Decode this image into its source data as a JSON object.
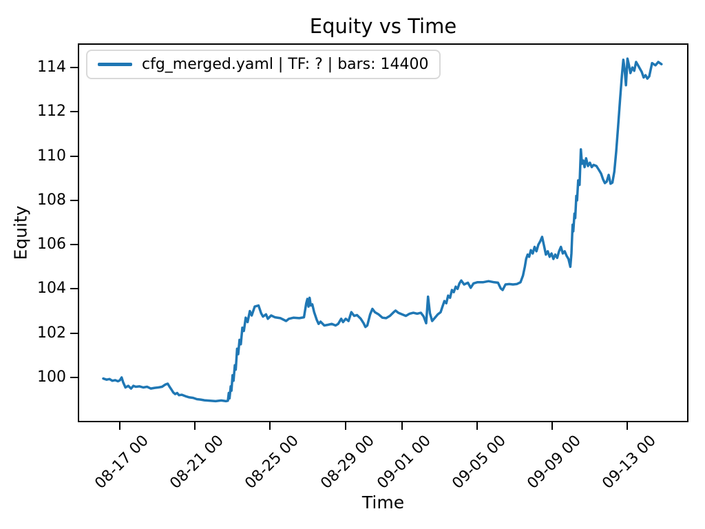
{
  "title": "Equity vs Time",
  "xlabel": "Time",
  "ylabel": "Equity",
  "legend": {
    "label": "cfg_merged.yaml | TF: ? | bars: 14400",
    "line_color": "#1f77b4"
  },
  "colors": {
    "line": "#1f77b4",
    "axis": "#000000",
    "legend_border": "#d9d9d9",
    "background": "#ffffff"
  },
  "chart_data": {
    "type": "line",
    "title": "Equity vs Time",
    "xlabel": "Time",
    "ylabel": "Equity",
    "grid": false,
    "legend_position": "upper left",
    "x_unit": "days since 08-16 00:00 (x tick labels shown as MM-DD HH)",
    "xlim": [
      -1.2,
      31.3
    ],
    "ylim": [
      98.0,
      115.1
    ],
    "x_ticks": [
      {
        "t": 1,
        "label": "08-17 00"
      },
      {
        "t": 5,
        "label": "08-21 00"
      },
      {
        "t": 9,
        "label": "08-25 00"
      },
      {
        "t": 13,
        "label": "08-29 00"
      },
      {
        "t": 16,
        "label": "09-01 00"
      },
      {
        "t": 20,
        "label": "09-05 00"
      },
      {
        "t": 24,
        "label": "09-09 00"
      },
      {
        "t": 28,
        "label": "09-13 00"
      }
    ],
    "y_ticks": [
      100,
      102,
      104,
      106,
      108,
      110,
      112,
      114
    ],
    "series": [
      {
        "name": "cfg_merged.yaml | TF: ? | bars: 14400",
        "color": "#1f77b4",
        "points": [
          [
            0.12,
            99.95
          ],
          [
            0.3,
            99.9
          ],
          [
            0.45,
            99.93
          ],
          [
            0.6,
            99.85
          ],
          [
            0.75,
            99.88
          ],
          [
            0.9,
            99.83
          ],
          [
            1.0,
            99.87
          ],
          [
            1.1,
            100.0
          ],
          [
            1.18,
            99.78
          ],
          [
            1.3,
            99.55
          ],
          [
            1.45,
            99.62
          ],
          [
            1.6,
            99.5
          ],
          [
            1.72,
            99.62
          ],
          [
            1.85,
            99.58
          ],
          [
            2.05,
            99.6
          ],
          [
            2.25,
            99.55
          ],
          [
            2.45,
            99.58
          ],
          [
            2.65,
            99.5
          ],
          [
            2.85,
            99.53
          ],
          [
            3.05,
            99.55
          ],
          [
            3.25,
            99.58
          ],
          [
            3.42,
            99.68
          ],
          [
            3.55,
            99.72
          ],
          [
            3.65,
            99.58
          ],
          [
            3.75,
            99.45
          ],
          [
            3.85,
            99.32
          ],
          [
            3.95,
            99.25
          ],
          [
            4.05,
            99.3
          ],
          [
            4.15,
            99.2
          ],
          [
            4.3,
            99.22
          ],
          [
            4.5,
            99.15
          ],
          [
            4.7,
            99.1
          ],
          [
            4.9,
            99.08
          ],
          [
            5.1,
            99.02
          ],
          [
            5.3,
            99.0
          ],
          [
            5.5,
            98.97
          ],
          [
            5.8,
            98.95
          ],
          [
            6.1,
            98.93
          ],
          [
            6.4,
            98.96
          ],
          [
            6.65,
            98.93
          ],
          [
            6.75,
            98.95
          ],
          [
            6.8,
            99.3
          ],
          [
            6.84,
            99.05
          ],
          [
            6.9,
            99.6
          ],
          [
            6.94,
            99.4
          ],
          [
            7.0,
            100.1
          ],
          [
            7.05,
            99.85
          ],
          [
            7.12,
            100.55
          ],
          [
            7.17,
            100.35
          ],
          [
            7.24,
            101.3
          ],
          [
            7.3,
            101.05
          ],
          [
            7.37,
            101.7
          ],
          [
            7.44,
            101.5
          ],
          [
            7.52,
            102.25
          ],
          [
            7.6,
            102.1
          ],
          [
            7.7,
            102.7
          ],
          [
            7.8,
            102.5
          ],
          [
            7.92,
            103.0
          ],
          [
            8.02,
            102.8
          ],
          [
            8.18,
            103.2
          ],
          [
            8.38,
            103.25
          ],
          [
            8.52,
            102.9
          ],
          [
            8.62,
            102.75
          ],
          [
            8.78,
            102.85
          ],
          [
            8.88,
            102.65
          ],
          [
            9.05,
            102.8
          ],
          [
            9.25,
            102.72
          ],
          [
            9.55,
            102.68
          ],
          [
            9.85,
            102.55
          ],
          [
            10.0,
            102.65
          ],
          [
            10.25,
            102.7
          ],
          [
            10.55,
            102.68
          ],
          [
            10.8,
            102.72
          ],
          [
            10.92,
            103.35
          ],
          [
            10.98,
            103.55
          ],
          [
            11.04,
            103.2
          ],
          [
            11.1,
            103.6
          ],
          [
            11.16,
            103.25
          ],
          [
            11.24,
            103.3
          ],
          [
            11.34,
            102.95
          ],
          [
            11.48,
            102.6
          ],
          [
            11.58,
            102.42
          ],
          [
            11.68,
            102.52
          ],
          [
            11.88,
            102.35
          ],
          [
            12.08,
            102.38
          ],
          [
            12.28,
            102.42
          ],
          [
            12.48,
            102.35
          ],
          [
            12.62,
            102.42
          ],
          [
            12.78,
            102.65
          ],
          [
            12.88,
            102.5
          ],
          [
            13.02,
            102.65
          ],
          [
            13.17,
            102.55
          ],
          [
            13.32,
            102.95
          ],
          [
            13.47,
            102.78
          ],
          [
            13.62,
            102.82
          ],
          [
            13.82,
            102.65
          ],
          [
            13.97,
            102.45
          ],
          [
            14.07,
            102.28
          ],
          [
            14.17,
            102.35
          ],
          [
            14.32,
            102.85
          ],
          [
            14.44,
            103.1
          ],
          [
            14.57,
            102.95
          ],
          [
            14.77,
            102.85
          ],
          [
            14.97,
            102.7
          ],
          [
            15.17,
            102.68
          ],
          [
            15.37,
            102.78
          ],
          [
            15.57,
            102.95
          ],
          [
            15.67,
            103.02
          ],
          [
            15.82,
            102.92
          ],
          [
            16.02,
            102.85
          ],
          [
            16.22,
            102.78
          ],
          [
            16.42,
            102.88
          ],
          [
            16.62,
            102.92
          ],
          [
            16.82,
            102.88
          ],
          [
            17.02,
            102.92
          ],
          [
            17.17,
            102.75
          ],
          [
            17.3,
            102.45
          ],
          [
            17.4,
            103.65
          ],
          [
            17.5,
            102.9
          ],
          [
            17.62,
            102.55
          ],
          [
            17.77,
            102.7
          ],
          [
            17.92,
            102.85
          ],
          [
            18.07,
            102.95
          ],
          [
            18.17,
            103.2
          ],
          [
            18.27,
            103.45
          ],
          [
            18.37,
            103.35
          ],
          [
            18.47,
            103.7
          ],
          [
            18.57,
            103.6
          ],
          [
            18.67,
            103.95
          ],
          [
            18.77,
            103.85
          ],
          [
            18.87,
            104.1
          ],
          [
            18.97,
            104.0
          ],
          [
            19.07,
            104.25
          ],
          [
            19.17,
            104.38
          ],
          [
            19.32,
            104.2
          ],
          [
            19.52,
            104.28
          ],
          [
            19.67,
            104.05
          ],
          [
            19.82,
            104.25
          ],
          [
            20.02,
            104.3
          ],
          [
            20.32,
            104.3
          ],
          [
            20.62,
            104.35
          ],
          [
            20.92,
            104.3
          ],
          [
            21.12,
            104.28
          ],
          [
            21.27,
            104.02
          ],
          [
            21.37,
            103.95
          ],
          [
            21.52,
            104.2
          ],
          [
            21.72,
            104.22
          ],
          [
            21.92,
            104.2
          ],
          [
            22.12,
            104.22
          ],
          [
            22.32,
            104.3
          ],
          [
            22.45,
            104.6
          ],
          [
            22.55,
            105.0
          ],
          [
            22.62,
            105.35
          ],
          [
            22.7,
            105.55
          ],
          [
            22.78,
            105.45
          ],
          [
            22.87,
            105.75
          ],
          [
            22.97,
            105.6
          ],
          [
            23.07,
            105.9
          ],
          [
            23.17,
            105.7
          ],
          [
            23.27,
            106.0
          ],
          [
            23.37,
            106.15
          ],
          [
            23.47,
            106.35
          ],
          [
            23.57,
            105.95
          ],
          [
            23.67,
            105.55
          ],
          [
            23.77,
            105.7
          ],
          [
            23.87,
            105.45
          ],
          [
            23.97,
            105.6
          ],
          [
            24.07,
            105.35
          ],
          [
            24.17,
            105.55
          ],
          [
            24.27,
            105.4
          ],
          [
            24.37,
            105.7
          ],
          [
            24.47,
            105.9
          ],
          [
            24.57,
            105.6
          ],
          [
            24.67,
            105.7
          ],
          [
            24.77,
            105.5
          ],
          [
            24.87,
            105.35
          ],
          [
            24.97,
            105.0
          ],
          [
            25.03,
            105.6
          ],
          [
            25.09,
            106.9
          ],
          [
            25.13,
            106.6
          ],
          [
            25.19,
            107.4
          ],
          [
            25.23,
            107.2
          ],
          [
            25.29,
            108.2
          ],
          [
            25.33,
            108.0
          ],
          [
            25.39,
            108.9
          ],
          [
            25.46,
            108.7
          ],
          [
            25.53,
            110.3
          ],
          [
            25.59,
            109.65
          ],
          [
            25.66,
            109.8
          ],
          [
            25.73,
            109.5
          ],
          [
            25.81,
            109.9
          ],
          [
            25.91,
            109.55
          ],
          [
            26.01,
            109.7
          ],
          [
            26.11,
            109.5
          ],
          [
            26.21,
            109.6
          ],
          [
            26.36,
            109.55
          ],
          [
            26.51,
            109.35
          ],
          [
            26.61,
            109.2
          ],
          [
            26.71,
            108.95
          ],
          [
            26.81,
            108.78
          ],
          [
            26.91,
            108.85
          ],
          [
            27.01,
            109.15
          ],
          [
            27.11,
            108.75
          ],
          [
            27.21,
            108.8
          ],
          [
            27.31,
            109.3
          ],
          [
            27.41,
            110.2
          ],
          [
            27.51,
            111.3
          ],
          [
            27.61,
            112.5
          ],
          [
            27.71,
            113.6
          ],
          [
            27.79,
            114.35
          ],
          [
            27.86,
            113.9
          ],
          [
            27.93,
            113.2
          ],
          [
            28.01,
            114.4
          ],
          [
            28.09,
            114.1
          ],
          [
            28.17,
            113.75
          ],
          [
            28.27,
            114.0
          ],
          [
            28.37,
            113.85
          ],
          [
            28.47,
            114.25
          ],
          [
            28.57,
            114.1
          ],
          [
            28.67,
            113.95
          ],
          [
            28.77,
            113.8
          ],
          [
            28.87,
            113.55
          ],
          [
            28.97,
            113.65
          ],
          [
            29.07,
            113.5
          ],
          [
            29.17,
            113.6
          ],
          [
            29.32,
            114.2
          ],
          [
            29.5,
            114.1
          ],
          [
            29.65,
            114.25
          ],
          [
            29.82,
            114.15
          ]
        ]
      }
    ]
  }
}
